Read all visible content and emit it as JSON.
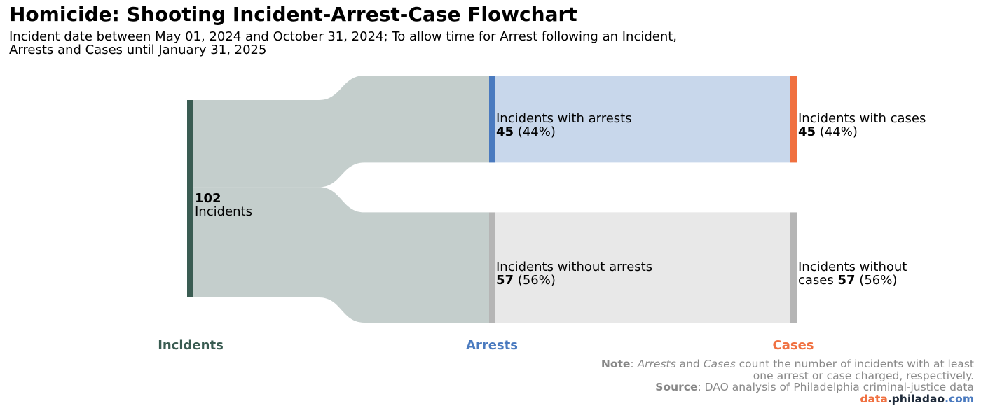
{
  "title": "Homicide: Shooting Incident-Arrest-Case Flowchart",
  "subtitle": "Incident date between May 01, 2024 and October 31, 2024; To allow time for Arrest following an Incident, Arrests and Cases until January 31, 2025",
  "chart_data": {
    "type": "sankey",
    "stages": [
      {
        "label": "Incidents",
        "color": "#3a5c52"
      },
      {
        "label": "Arrests",
        "color": "#4a7abf"
      },
      {
        "label": "Cases",
        "color": "#f07040"
      }
    ],
    "nodes": [
      {
        "id": "incidents",
        "stage": 0,
        "value": 102,
        "value_text": "102",
        "label": "Incidents",
        "color": "#3a5c52"
      },
      {
        "id": "with_arrests",
        "stage": 1,
        "value": 45,
        "value_text": "45",
        "pct_text": "(44%)",
        "label": "Incidents with arrests",
        "color": "#4a7abf"
      },
      {
        "id": "without_arrests",
        "stage": 1,
        "value": 57,
        "value_text": "57",
        "pct_text": "(56%)",
        "label": "Incidents without arrests",
        "color": "#b5b5b5"
      },
      {
        "id": "with_cases",
        "stage": 2,
        "value": 45,
        "value_text": "45",
        "pct_text": "(44%)",
        "label": "Incidents with cases",
        "color": "#f07040"
      },
      {
        "id": "without_cases",
        "stage": 2,
        "value": 57,
        "value_text": "57",
        "pct_text": "(56%)",
        "label_a": "Incidents without",
        "label_b": "cases",
        "color": "#b5b5b5"
      }
    ],
    "links": [
      {
        "source": "incidents",
        "target": "with_arrests",
        "value": 45,
        "color": "#c4cecc"
      },
      {
        "source": "incidents",
        "target": "without_arrests",
        "value": 57,
        "color": "#c4cecc"
      },
      {
        "source": "with_arrests",
        "target": "with_cases",
        "value": 45,
        "color": "#c8d7eb"
      },
      {
        "source": "without_arrests",
        "target": "without_cases",
        "value": 57,
        "color": "#e8e8e8"
      }
    ]
  },
  "footer": {
    "note_label": "Note",
    "note_pre": ": ",
    "note_arrests": "Arrests",
    "note_and": " and ",
    "note_cases": "Cases",
    "note_rest": " count the number of incidents with at least",
    "note_line2": "one arrest or case charged, respectively.",
    "source_label": "Source",
    "source_text": ": DAO analysis of Philadelphia criminal-justice data",
    "brand_a": "data",
    "brand_b": ".philadao",
    "brand_c": ".com",
    "brand_colors": [
      "#f07040",
      "#1e2a3a",
      "#4a7abf"
    ]
  }
}
